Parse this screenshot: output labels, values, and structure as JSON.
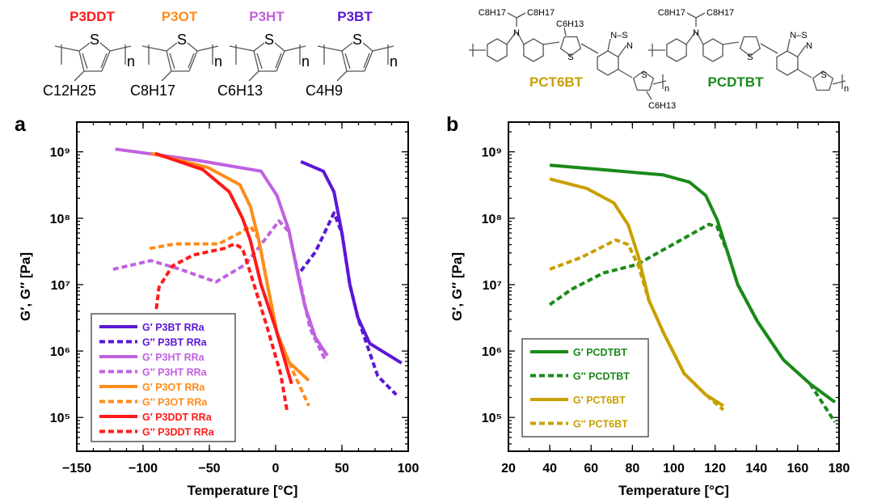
{
  "structures": {
    "polythiophenes": [
      {
        "name": "P3DDT",
        "side_chain": "C12H25",
        "repeat": "n",
        "ring_atom": "S",
        "color": "#ff1a1a"
      },
      {
        "name": "P3OT",
        "side_chain": "C8H17",
        "repeat": "n",
        "ring_atom": "S",
        "color": "#ff8c1a"
      },
      {
        "name": "P3HT",
        "side_chain": "C6H13",
        "repeat": "n",
        "ring_atom": "S",
        "color": "#c061e0"
      },
      {
        "name": "P3BT",
        "side_chain": "C4H9",
        "repeat": "n",
        "ring_atom": "S",
        "color": "#5b17d6"
      }
    ],
    "copolymers": [
      {
        "name": "PCT6BT",
        "branch_chains": [
          "C8H17",
          "C8H17"
        ],
        "hexyl": "C6H13",
        "atoms": {
          "N": "N",
          "S": "S",
          "NS": "N–S"
        },
        "repeat": "n",
        "color": "#c8a000"
      },
      {
        "name": "PCDTBT",
        "branch_chains": [
          "C8H17",
          "C8H17"
        ],
        "hexyl": "",
        "atoms": {
          "N": "N",
          "S": "S",
          "NS": "N–S"
        },
        "repeat": "n",
        "color": "#1a8a1a"
      }
    ]
  },
  "chart_data": [
    {
      "type": "line",
      "panel_label": "a",
      "xlabel": "Temperature [°C]",
      "ylabel": "G′, G″ [Pa]",
      "xlim": [
        -150,
        100
      ],
      "ylim": [
        31000.0,
        2800000000.0
      ],
      "yscale": "log",
      "xticks": [
        -150,
        -100,
        -50,
        0,
        50,
        100
      ],
      "xtick_labels": [
        "−150",
        "−100",
        "−50",
        "0",
        "50",
        "100"
      ],
      "yticks": [
        100000.0,
        1000000.0,
        10000000.0,
        100000000.0,
        1000000000.0
      ],
      "ytick_labels": [
        "10⁵",
        "10⁶",
        "10⁷",
        "10⁸",
        "10⁹"
      ],
      "grid": false,
      "legend": "bottom-left",
      "series": [
        {
          "name": "G′ P3BT RRa",
          "color": "#5b17d6",
          "dash": false,
          "x": [
            19,
            36,
            44,
            50,
            56,
            62,
            71,
            81,
            95
          ],
          "y": [
            710000000.0,
            510000000.0,
            250000000.0,
            60000000.0,
            10000000.0,
            3200000.0,
            1300000.0,
            980000.0,
            660000.0
          ]
        },
        {
          "name": "G″ P3BT RRa",
          "color": "#5b17d6",
          "dash": true,
          "x": [
            19,
            30,
            44,
            50,
            56,
            62,
            67,
            77,
            91
          ],
          "y": [
            16000000.0,
            31000000.0,
            120000000.0,
            60000000.0,
            10000000.0,
            3200000.0,
            1600000.0,
            420000.0,
            220000.0
          ]
        },
        {
          "name": "G′ P3HT RRa",
          "color": "#c061e0",
          "dash": false,
          "x": [
            -121,
            -60,
            -11,
            1,
            10,
            16,
            22,
            30,
            39
          ],
          "y": [
            1100000000.0,
            750000000.0,
            510000000.0,
            220000000.0,
            66000000.0,
            17000000.0,
            4800000.0,
            1600000.0,
            850000.0
          ]
        },
        {
          "name": "G″ P3HT RRa",
          "color": "#c061e0",
          "dash": true,
          "x": [
            -122.6,
            -94,
            -72,
            -45,
            -23,
            -11,
            2.5,
            10,
            18,
            26,
            38
          ],
          "y": [
            17000000.0,
            23000000.0,
            17000000.0,
            11000000.0,
            20000000.0,
            40000000.0,
            91000000.0,
            63000000.0,
            12000000.0,
            2200000.0,
            690000.0
          ]
        },
        {
          "name": "G′ P3OT RRa",
          "color": "#ff8c1a",
          "dash": false,
          "x": [
            -94,
            -51,
            -27,
            -19,
            -13,
            -7,
            1,
            10,
            25
          ],
          "y": [
            950000000.0,
            580000000.0,
            320000000.0,
            150000000.0,
            50000000.0,
            12000000.0,
            1900000.0,
            680000.0,
            360000.0
          ]
        },
        {
          "name": "G″ P3OT RRa",
          "color": "#ff8c1a",
          "dash": true,
          "x": [
            -95,
            -76,
            -43,
            -27,
            -19,
            -13,
            1,
            13,
            25
          ],
          "y": [
            35000000.0,
            41000000.0,
            41000000.0,
            60000000.0,
            76000000.0,
            50000000.0,
            1900000.0,
            500000.0,
            150000.0
          ]
        },
        {
          "name": "G′ P3DDT RRa",
          "color": "#ff1a1a",
          "dash": false,
          "x": [
            -91,
            -55,
            -35,
            -25,
            -19,
            -11,
            0,
            12
          ],
          "y": [
            950000000.0,
            540000000.0,
            250000000.0,
            100000000.0,
            46000000.0,
            10000000.0,
            2200000.0,
            320000.0
          ]
        },
        {
          "name": "G″ P3DDT RRa",
          "color": "#ff1a1a",
          "dash": true,
          "x": [
            -90,
            -88,
            -78,
            -62,
            -39,
            -31,
            -25,
            -19,
            -7,
            3.7,
            8.5
          ],
          "y": [
            4300000.0,
            9100000.0,
            19000000.0,
            28000000.0,
            35000000.0,
            41000000.0,
            35000000.0,
            15000000.0,
            2500000.0,
            460000.0,
            130000.0
          ]
        }
      ]
    },
    {
      "type": "line",
      "panel_label": "b",
      "xlabel": "Temperature [°C]",
      "ylabel": "G′, G″ [Pa]",
      "xlim": [
        20,
        180
      ],
      "ylim": [
        31000.0,
        2800000000.0
      ],
      "yscale": "log",
      "xticks": [
        20,
        40,
        60,
        80,
        100,
        120,
        140,
        160,
        180
      ],
      "xtick_labels": [
        "20",
        "40",
        "60",
        "80",
        "100",
        "120",
        "140",
        "160",
        "180"
      ],
      "yticks": [
        100000.0,
        1000000.0,
        10000000.0,
        100000000.0,
        1000000000.0
      ],
      "ytick_labels": [
        "10⁵",
        "10⁶",
        "10⁷",
        "10⁸",
        "10⁹"
      ],
      "grid": false,
      "legend": "bottom-left",
      "series": [
        {
          "name": "G′ PCDTBT",
          "color": "#1a8a1a",
          "dash": false,
          "x": [
            40,
            94.7,
            107.6,
            115.5,
            121,
            126,
            131,
            140.5,
            153,
            166,
            178
          ],
          "y": [
            630000000.0,
            450000000.0,
            350000000.0,
            220000000.0,
            95000000.0,
            31000000.0,
            10000000.0,
            2800000.0,
            740000.0,
            320000.0,
            170000.0
          ]
        },
        {
          "name": "G″ PCDTBT",
          "color": "#1a8a1a",
          "dash": true,
          "x": [
            40,
            50.5,
            66,
            82,
            97.5,
            117,
            121,
            126,
            131,
            140.5,
            153,
            166,
            178
          ],
          "y": [
            5000000.0,
            8500000.0,
            15000000.0,
            20000000.0,
            37000000.0,
            81000000.0,
            74000000.0,
            31000000.0,
            10000000.0,
            2800000.0,
            740000.0,
            320000.0,
            85000.0
          ]
        },
        {
          "name": "G′ PCT6BT",
          "color": "#c8a000",
          "dash": false,
          "x": [
            40,
            58,
            71,
            78,
            83,
            88,
            95,
            105,
            115.5,
            124
          ],
          "y": [
            390000000.0,
            280000000.0,
            170000000.0,
            79000000.0,
            26000000.0,
            5800000.0,
            1900000.0,
            460000.0,
            220000.0,
            150000.0
          ]
        },
        {
          "name": "G″ PCT6BT",
          "color": "#c8a000",
          "dash": true,
          "x": [
            40,
            55.6,
            72,
            78,
            83,
            88,
            95,
            105,
            115.5,
            124
          ],
          "y": [
            17000000.0,
            26000000.0,
            47000000.0,
            40000000.0,
            19000000.0,
            5800000.0,
            1900000.0,
            460000.0,
            220000.0,
            130000.0
          ]
        }
      ]
    }
  ]
}
